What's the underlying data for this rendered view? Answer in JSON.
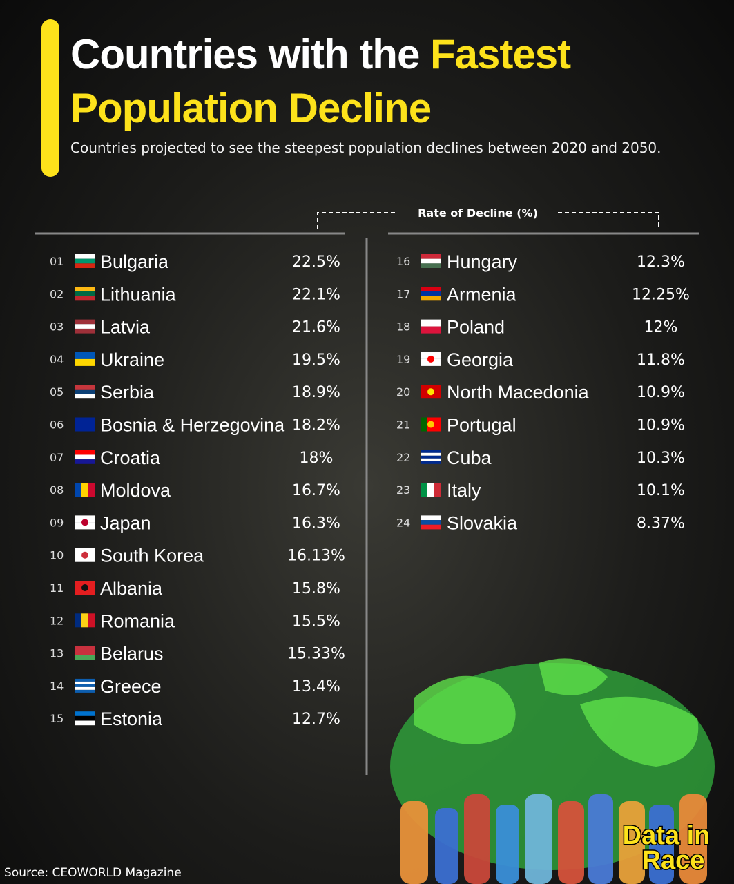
{
  "header": {
    "title": [
      "Countries with the",
      "Fastest Population Decline"
    ],
    "subtitle": "Countries projected to see the steepest population declines between 2020 and 2050."
  },
  "table": {
    "column_header": "Rate of Decline (%)",
    "left": [
      {
        "rank": "01",
        "country": "Bulgaria",
        "value": "22.5%"
      },
      {
        "rank": "02",
        "country": "Lithuania",
        "value": "22.1%"
      },
      {
        "rank": "03",
        "country": "Latvia",
        "value": "21.6%"
      },
      {
        "rank": "04",
        "country": "Ukraine",
        "value": "19.5%"
      },
      {
        "rank": "05",
        "country": "Serbia",
        "value": "18.9%"
      },
      {
        "rank": "06",
        "country": "Bosnia & Herzegovina",
        "value": "18.2%"
      },
      {
        "rank": "07",
        "country": "Croatia",
        "value": "18%"
      },
      {
        "rank": "08",
        "country": "Moldova",
        "value": "16.7%"
      },
      {
        "rank": "09",
        "country": "Japan",
        "value": "16.3%"
      },
      {
        "rank": "10",
        "country": "South Korea",
        "value": "16.13%"
      },
      {
        "rank": "11",
        "country": "Albania",
        "value": "15.8%"
      },
      {
        "rank": "12",
        "country": "Romania",
        "value": "15.5%"
      },
      {
        "rank": "13",
        "country": "Belarus",
        "value": "15.33%"
      },
      {
        "rank": "14",
        "country": "Greece",
        "value": "13.4%"
      },
      {
        "rank": "15",
        "country": "Estonia",
        "value": "12.7%"
      }
    ],
    "right": [
      {
        "rank": "16",
        "country": "Hungary",
        "value": "12.3%"
      },
      {
        "rank": "17",
        "country": "Armenia",
        "value": "12.25%"
      },
      {
        "rank": "18",
        "country": "Poland",
        "value": "12%"
      },
      {
        "rank": "19",
        "country": "Georgia",
        "value": "11.8%"
      },
      {
        "rank": "20",
        "country": "North Macedonia",
        "value": "10.9%"
      },
      {
        "rank": "21",
        "country": "Portugal",
        "value": "10.9%"
      },
      {
        "rank": "22",
        "country": "Cuba",
        "value": "10.3%"
      },
      {
        "rank": "23",
        "country": "Italy",
        "value": "10.1%"
      },
      {
        "rank": "24",
        "country": "Slovakia",
        "value": "8.37%"
      }
    ]
  },
  "source": "Source: CEOWORLD Magazine",
  "logo": [
    "Data in",
    "Race"
  ]
}
